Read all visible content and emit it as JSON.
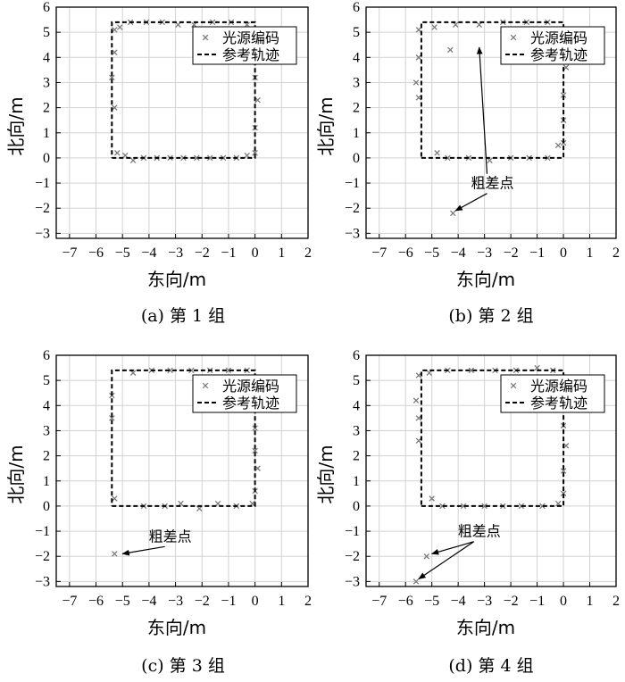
{
  "chart_data": [
    {
      "type": "scatter",
      "caption": "(a) 第 1 组",
      "xlabel": "东向/m",
      "ylabel": "北向/m",
      "xlim": [
        -7.5,
        2
      ],
      "ylim": [
        -3.2,
        6
      ],
      "xticks": [
        -7,
        -6,
        -5,
        -4,
        -3,
        -2,
        -1,
        0,
        1,
        2
      ],
      "yticks": [
        -3,
        -2,
        -1,
        0,
        1,
        2,
        3,
        4,
        5,
        6
      ],
      "grid": true,
      "legend_position": "top-right",
      "series": [
        {
          "name": "光源编码",
          "style": "cross",
          "color": "#7a7a7a",
          "points": [
            [
              -5.3,
              5.1
            ],
            [
              -5.3,
              4.2
            ],
            [
              -5.4,
              3.2
            ],
            [
              -5.3,
              2.0
            ],
            [
              -5.2,
              0.2
            ],
            [
              -4.9,
              0.1
            ],
            [
              -4.6,
              -0.1
            ],
            [
              -4.2,
              0.0
            ],
            [
              -3.7,
              0.0
            ],
            [
              -3.2,
              0.0
            ],
            [
              -2.7,
              0.0
            ],
            [
              -2.2,
              0.0
            ],
            [
              -1.7,
              0.0
            ],
            [
              -1.2,
              0.0
            ],
            [
              -0.7,
              0.0
            ],
            [
              -0.3,
              0.1
            ],
            [
              0.0,
              0.2
            ],
            [
              0.0,
              1.2
            ],
            [
              0.1,
              2.3
            ],
            [
              0.0,
              3.2
            ],
            [
              0.0,
              4.0
            ],
            [
              0.1,
              5.0
            ],
            [
              -0.3,
              5.3
            ],
            [
              -0.9,
              5.4
            ],
            [
              -1.6,
              5.4
            ],
            [
              -2.3,
              5.3
            ],
            [
              -2.9,
              5.3
            ],
            [
              -3.5,
              5.4
            ],
            [
              -4.1,
              5.4
            ],
            [
              -4.7,
              5.4
            ],
            [
              -5.1,
              5.2
            ]
          ]
        },
        {
          "name": "参考轨迹",
          "style": "dashed",
          "color": "#000000",
          "points": [
            [
              -5.4,
              0
            ],
            [
              0,
              0
            ],
            [
              0,
              5.4
            ],
            [
              -5.4,
              5.4
            ],
            [
              -5.4,
              0
            ]
          ]
        }
      ],
      "annotations": []
    },
    {
      "type": "scatter",
      "caption": "(b) 第 2 组",
      "xlabel": "东向/m",
      "ylabel": "北向/m",
      "xlim": [
        -7.5,
        2
      ],
      "ylim": [
        -3.2,
        6
      ],
      "xticks": [
        -7,
        -6,
        -5,
        -4,
        -3,
        -2,
        -1,
        0,
        1,
        2
      ],
      "yticks": [
        -3,
        -2,
        -1,
        0,
        1,
        2,
        3,
        4,
        5,
        6
      ],
      "grid": true,
      "legend_position": "top-right",
      "series": [
        {
          "name": "光源编码",
          "style": "cross",
          "color": "#7a7a7a",
          "points": [
            [
              -5.5,
              5.1
            ],
            [
              -5.5,
              4.0
            ],
            [
              -5.6,
              3.0
            ],
            [
              -5.5,
              2.4
            ],
            [
              -4.8,
              0.2
            ],
            [
              -4.4,
              0.0
            ],
            [
              -3.6,
              0.0
            ],
            [
              -2.8,
              -0.1
            ],
            [
              -2.0,
              0.0
            ],
            [
              -1.3,
              0.0
            ],
            [
              -0.6,
              0.0
            ],
            [
              -0.2,
              0.5
            ],
            [
              0.0,
              0.6
            ],
            [
              0.0,
              1.5
            ],
            [
              0.0,
              2.5
            ],
            [
              0.1,
              3.6
            ],
            [
              0.0,
              4.5
            ],
            [
              -0.2,
              5.1
            ],
            [
              -0.6,
              5.4
            ],
            [
              -1.4,
              5.4
            ],
            [
              -2.3,
              5.4
            ],
            [
              -3.2,
              5.3
            ],
            [
              -4.1,
              5.3
            ],
            [
              -4.3,
              4.3
            ],
            [
              -4.9,
              5.2
            ],
            [
              -4.2,
              -2.2
            ]
          ]
        },
        {
          "name": "参考轨迹",
          "style": "dashed",
          "color": "#000000",
          "points": [
            [
              -5.4,
              0
            ],
            [
              0,
              0
            ],
            [
              0,
              5.4
            ],
            [
              -5.4,
              5.4
            ],
            [
              -5.4,
              0
            ]
          ]
        }
      ],
      "annotations": [
        {
          "text": "粗差点",
          "text_at": [
            -2.7,
            -1.2
          ],
          "arrows": [
            [
              -4.1,
              -2.1
            ],
            [
              -3.2,
              4.4
            ]
          ]
        }
      ]
    },
    {
      "type": "scatter",
      "caption": "(c) 第 3 组",
      "xlabel": "东向/m",
      "ylabel": "北向/m",
      "xlim": [
        -7.5,
        2
      ],
      "ylim": [
        -3.2,
        6
      ],
      "xticks": [
        -7,
        -6,
        -5,
        -4,
        -3,
        -2,
        -1,
        0,
        1,
        2
      ],
      "yticks": [
        -3,
        -2,
        -1,
        0,
        1,
        2,
        3,
        4,
        5,
        6
      ],
      "grid": true,
      "legend_position": "top-right",
      "series": [
        {
          "name": "光源编码",
          "style": "cross",
          "color": "#7a7a7a",
          "points": [
            [
              -5.4,
              4.4
            ],
            [
              -5.4,
              3.5
            ],
            [
              -5.3,
              0.3
            ],
            [
              -4.2,
              0.0
            ],
            [
              -3.4,
              0.0
            ],
            [
              -2.8,
              0.1
            ],
            [
              -2.1,
              -0.1
            ],
            [
              -1.4,
              0.1
            ],
            [
              -0.7,
              0.0
            ],
            [
              -0.1,
              0.1
            ],
            [
              0.0,
              0.6
            ],
            [
              0.1,
              1.5
            ],
            [
              0.0,
              2.2
            ],
            [
              0.0,
              3.1
            ],
            [
              0.1,
              4.2
            ],
            [
              0.0,
              5.1
            ],
            [
              -0.3,
              5.4
            ],
            [
              -1.0,
              5.4
            ],
            [
              -1.7,
              5.4
            ],
            [
              -2.4,
              5.4
            ],
            [
              -3.2,
              5.4
            ],
            [
              -3.9,
              5.4
            ],
            [
              -4.6,
              5.3
            ],
            [
              -5.3,
              -1.9
            ]
          ]
        },
        {
          "name": "参考轨迹",
          "style": "dashed",
          "color": "#000000",
          "points": [
            [
              -5.4,
              0
            ],
            [
              0,
              0
            ],
            [
              0,
              5.4
            ],
            [
              -5.4,
              5.4
            ],
            [
              -5.4,
              0
            ]
          ]
        }
      ],
      "annotations": [
        {
          "text": "粗差点",
          "text_at": [
            -3.2,
            -1.4
          ],
          "arrows": [
            [
              -5.0,
              -1.9
            ]
          ]
        }
      ]
    },
    {
      "type": "scatter",
      "caption": "(d) 第 4 组",
      "xlabel": "东向/m",
      "ylabel": "北向/m",
      "xlim": [
        -7.5,
        2
      ],
      "ylim": [
        -3.2,
        6
      ],
      "xticks": [
        -7,
        -6,
        -5,
        -4,
        -3,
        -2,
        -1,
        0,
        1,
        2
      ],
      "yticks": [
        -3,
        -2,
        -1,
        0,
        1,
        2,
        3,
        4,
        5,
        6
      ],
      "grid": true,
      "legend_position": "top-right",
      "series": [
        {
          "name": "光源编码",
          "style": "cross",
          "color": "#7a7a7a",
          "points": [
            [
              -5.5,
              5.2
            ],
            [
              -5.6,
              4.2
            ],
            [
              -5.5,
              3.5
            ],
            [
              -5.5,
              2.6
            ],
            [
              -5.0,
              0.3
            ],
            [
              -4.6,
              0.0
            ],
            [
              -3.8,
              0.0
            ],
            [
              -3.0,
              0.0
            ],
            [
              -2.3,
              0.0
            ],
            [
              -1.6,
              0.0
            ],
            [
              -0.8,
              0.0
            ],
            [
              -0.2,
              0.1
            ],
            [
              0.0,
              0.5
            ],
            [
              0.0,
              1.4
            ],
            [
              0.1,
              2.4
            ],
            [
              0.0,
              3.2
            ],
            [
              0.0,
              4.1
            ],
            [
              0.1,
              4.9
            ],
            [
              -0.4,
              5.4
            ],
            [
              -1.0,
              5.5
            ],
            [
              -1.8,
              5.4
            ],
            [
              -2.6,
              5.4
            ],
            [
              -3.5,
              5.4
            ],
            [
              -4.4,
              5.4
            ],
            [
              -5.1,
              5.3
            ],
            [
              -5.2,
              -2.0
            ],
            [
              -5.6,
              -3.0
            ]
          ]
        },
        {
          "name": "参考轨迹",
          "style": "dashed",
          "color": "#000000",
          "points": [
            [
              -5.4,
              0
            ],
            [
              0,
              0
            ],
            [
              0,
              5.4
            ],
            [
              -5.4,
              5.4
            ],
            [
              -5.4,
              0
            ]
          ]
        }
      ],
      "annotations": [
        {
          "text": "粗差点",
          "text_at": [
            -3.2,
            -1.2
          ],
          "arrows": [
            [
              -5.0,
              -1.9
            ],
            [
              -5.5,
              -2.9
            ]
          ]
        }
      ]
    }
  ]
}
